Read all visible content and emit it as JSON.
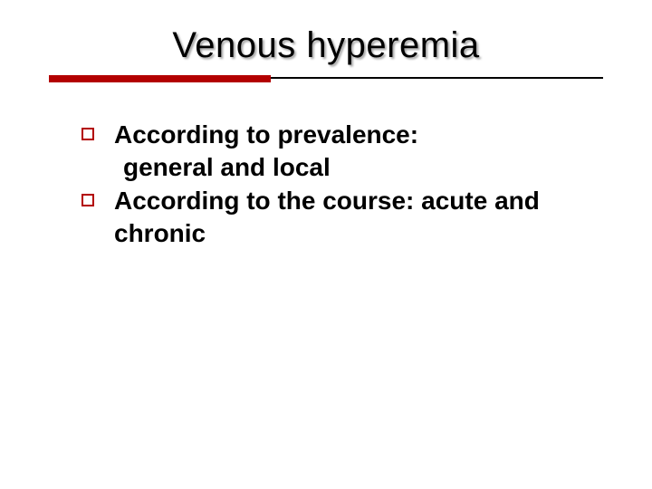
{
  "slide": {
    "title": "Venous hyperemia",
    "title_fontsize": 40,
    "title_color": "#000000",
    "title_shadow": "2px 2px 2px rgba(0,0,0,0.35)",
    "rule": {
      "thin_color": "#000000",
      "thin_height": 2,
      "thick_color": "#b30000",
      "thick_height": 8,
      "thick_width_ratio": 0.4,
      "total_width": 612
    },
    "bullets": [
      {
        "lead": "According to prevalence:",
        "follow": " general and local"
      },
      {
        "lead": "According to the course: acute and chronic",
        "follow": ""
      }
    ],
    "bullet_marker": {
      "type": "hollow-square",
      "size": 14,
      "border_width": 2,
      "border_color": "#b30000"
    },
    "body_fontsize": 28,
    "body_fontweight": 700,
    "body_color": "#000000",
    "background_color": "#ffffff",
    "font_family": "Verdana"
  }
}
